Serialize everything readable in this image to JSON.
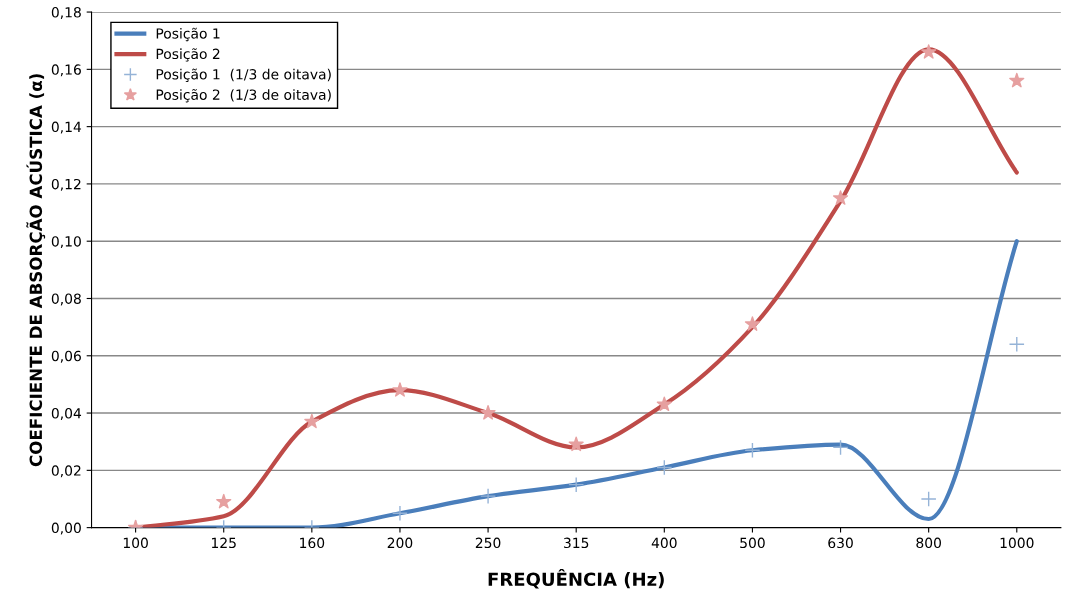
{
  "chart_data": {
    "type": "line",
    "xlabel": "FREQUÊNCIA (Hz)",
    "ylabel": "COEFICIENTE DE ABSORÇÃO ACÚSTICA (α)",
    "categories": [
      "100",
      "125",
      "160",
      "200",
      "250",
      "315",
      "400",
      "500",
      "630",
      "800",
      "1000"
    ],
    "series": [
      {
        "name": "Posição 1",
        "color": "#4a7ebb",
        "values": [
          0.0,
          0.0,
          0.0,
          0.005,
          0.011,
          0.015,
          0.021,
          0.027,
          0.029,
          0.003,
          0.1
        ]
      },
      {
        "name": "Posição 2",
        "color": "#be4b48",
        "values": [
          0.0,
          0.004,
          0.037,
          0.048,
          0.04,
          0.028,
          0.043,
          0.07,
          0.114,
          0.167,
          0.124
        ]
      },
      {
        "name": "Posição 1  (1/3 de oitava)",
        "type": "scatter",
        "color": "#95b3d7",
        "marker": "cross",
        "values": [
          0.0,
          0.0,
          0.0,
          0.005,
          0.011,
          0.015,
          0.021,
          0.027,
          0.028,
          0.01,
          0.064
        ]
      },
      {
        "name": "Posição 2  (1/3 de oitava)",
        "type": "scatter",
        "color": "#e6a0a0",
        "marker": "star",
        "values": [
          0.0,
          0.009,
          0.037,
          0.048,
          0.04,
          0.029,
          0.043,
          0.071,
          0.115,
          0.166,
          0.156
        ]
      }
    ],
    "ylim": [
      0,
      0.18
    ],
    "yticks": [
      {
        "value": 0,
        "label": "0,00"
      },
      {
        "value": 0.02,
        "label": "0,02"
      },
      {
        "value": 0.04,
        "label": "0,04"
      },
      {
        "value": 0.06,
        "label": "0,06"
      },
      {
        "value": 0.08,
        "label": "0,08"
      },
      {
        "value": 0.1,
        "label": "0,10"
      },
      {
        "value": 0.12,
        "label": "0,12"
      },
      {
        "value": 0.14,
        "label": "0,14"
      },
      {
        "value": 0.16,
        "label": "0,16"
      },
      {
        "value": 0.18,
        "label": "0,18"
      }
    ],
    "grid": "y",
    "legend": "top left"
  }
}
